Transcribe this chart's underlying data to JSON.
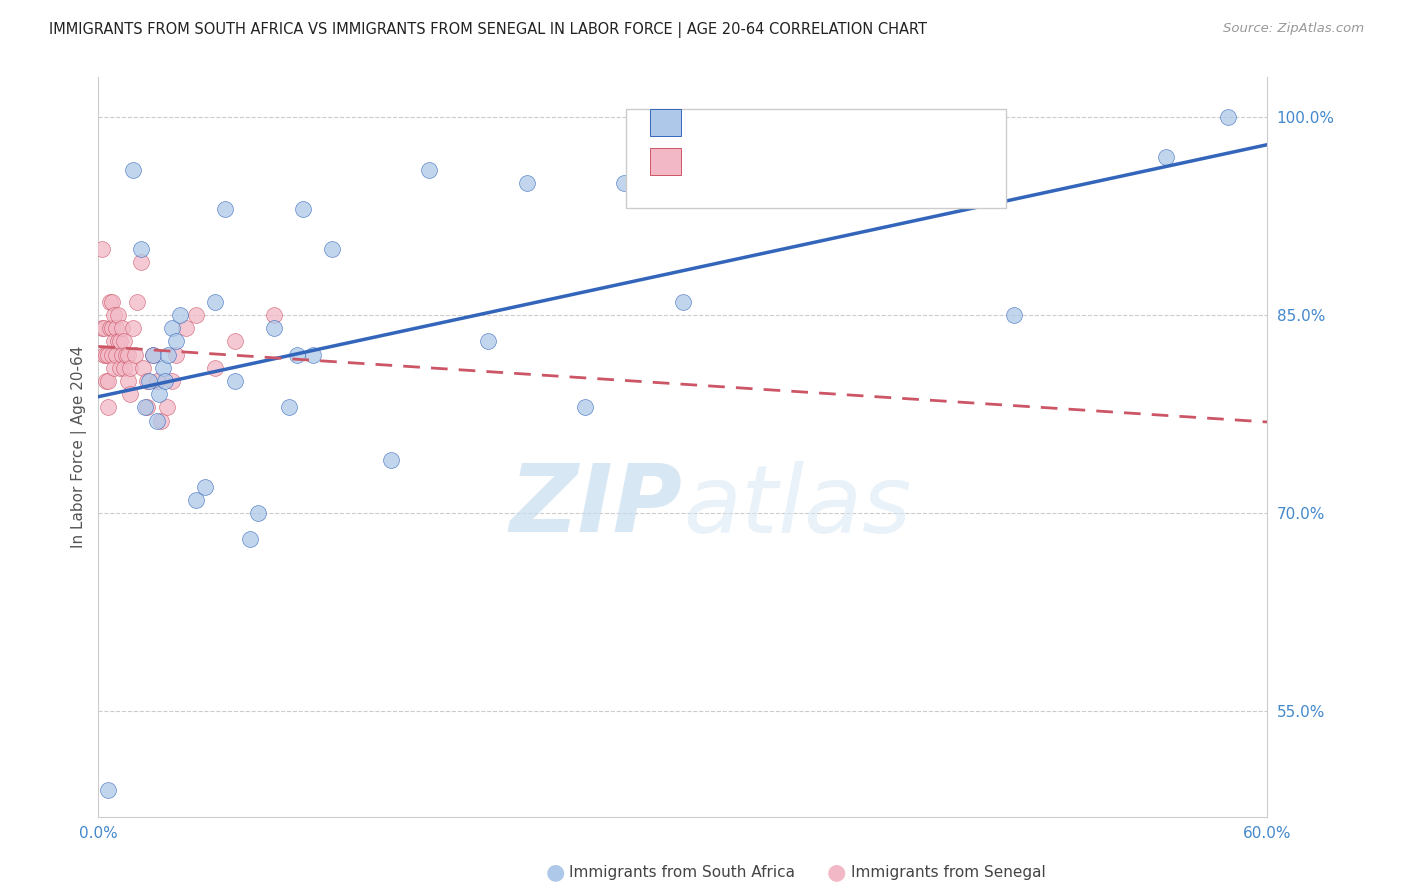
{
  "title": "IMMIGRANTS FROM SOUTH AFRICA VS IMMIGRANTS FROM SENEGAL IN LABOR FORCE | AGE 20-64 CORRELATION CHART",
  "source": "Source: ZipAtlas.com",
  "ylabel": "In Labor Force | Age 20-64",
  "xlim": [
    0.0,
    0.6
  ],
  "ylim": [
    0.47,
    1.03
  ],
  "xticks": [
    0.0,
    0.1,
    0.2,
    0.3,
    0.4,
    0.5,
    0.6
  ],
  "xticklabels": [
    "0.0%",
    "",
    "",
    "",
    "",
    "",
    "60.0%"
  ],
  "right_yticks": [
    0.55,
    0.7,
    0.85,
    1.0
  ],
  "right_yticklabels": [
    "55.0%",
    "70.0%",
    "85.0%",
    "100.0%"
  ],
  "color_blue": "#adc8e8",
  "color_pink": "#f2b8c6",
  "color_blue_line": "#3366bb",
  "color_pink_line": "#cc5566",
  "legend_label1": "Immigrants from South Africa",
  "legend_label2": "Immigrants from Senegal",
  "watermark_zip": "ZIP",
  "watermark_atlas": "atlas",
  "south_africa_x": [
    0.005,
    0.018,
    0.022,
    0.024,
    0.026,
    0.028,
    0.03,
    0.031,
    0.033,
    0.034,
    0.036,
    0.038,
    0.04,
    0.042,
    0.05,
    0.055,
    0.06,
    0.065,
    0.07,
    0.078,
    0.082,
    0.09,
    0.098,
    0.102,
    0.105,
    0.11,
    0.12,
    0.15,
    0.17,
    0.2,
    0.22,
    0.25,
    0.27,
    0.3,
    0.47,
    0.548,
    0.58
  ],
  "south_africa_y": [
    0.49,
    0.96,
    0.9,
    0.78,
    0.8,
    0.82,
    0.77,
    0.79,
    0.81,
    0.8,
    0.82,
    0.84,
    0.83,
    0.85,
    0.71,
    0.72,
    0.86,
    0.93,
    0.8,
    0.68,
    0.7,
    0.84,
    0.78,
    0.82,
    0.93,
    0.82,
    0.9,
    0.74,
    0.96,
    0.83,
    0.95,
    0.78,
    0.95,
    0.86,
    0.85,
    0.97,
    1.0
  ],
  "senegal_x": [
    0.002,
    0.002,
    0.003,
    0.003,
    0.004,
    0.004,
    0.005,
    0.005,
    0.005,
    0.006,
    0.006,
    0.007,
    0.007,
    0.007,
    0.008,
    0.008,
    0.008,
    0.009,
    0.009,
    0.01,
    0.01,
    0.011,
    0.011,
    0.012,
    0.012,
    0.013,
    0.013,
    0.014,
    0.015,
    0.015,
    0.016,
    0.016,
    0.018,
    0.019,
    0.02,
    0.022,
    0.023,
    0.025,
    0.025,
    0.028,
    0.03,
    0.032,
    0.035,
    0.038,
    0.04,
    0.045,
    0.05,
    0.06,
    0.07,
    0.09
  ],
  "senegal_y": [
    0.84,
    0.9,
    0.82,
    0.84,
    0.8,
    0.82,
    0.78,
    0.8,
    0.82,
    0.84,
    0.86,
    0.82,
    0.84,
    0.86,
    0.81,
    0.83,
    0.85,
    0.82,
    0.84,
    0.83,
    0.85,
    0.81,
    0.83,
    0.82,
    0.84,
    0.81,
    0.83,
    0.82,
    0.8,
    0.82,
    0.79,
    0.81,
    0.84,
    0.82,
    0.86,
    0.89,
    0.81,
    0.78,
    0.8,
    0.82,
    0.8,
    0.77,
    0.78,
    0.8,
    0.82,
    0.84,
    0.85,
    0.81,
    0.83,
    0.85
  ]
}
